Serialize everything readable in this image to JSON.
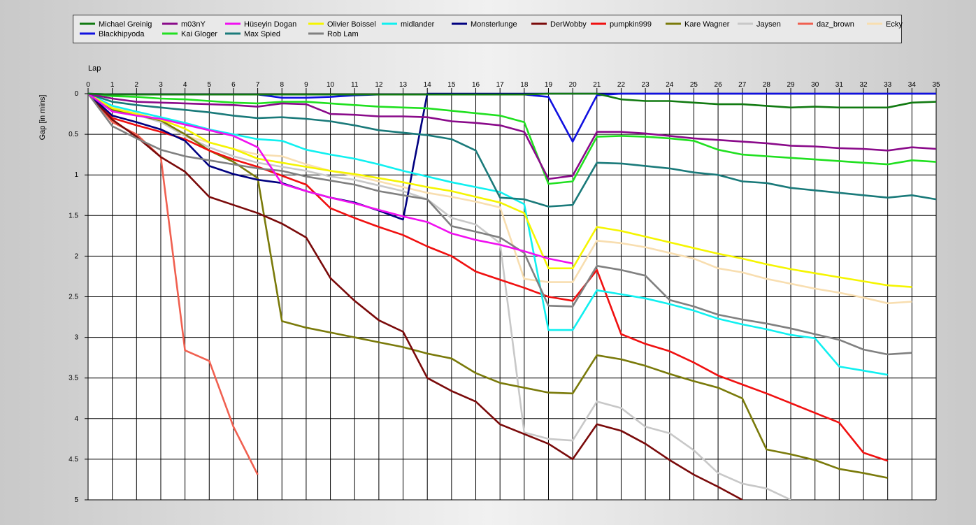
{
  "chart_data": {
    "type": "line",
    "xlabel": "Lap",
    "ylabel": "Gap [in mins]",
    "xlim": [
      0,
      35
    ],
    "ylim": [
      0,
      5
    ],
    "y_inverted": true,
    "grid": true,
    "legend_position": "top",
    "x_ticks": [
      "0",
      "1",
      "2",
      "3",
      "4",
      "5",
      "6",
      "7",
      "8",
      "9",
      "10",
      "11",
      "12",
      "13",
      "14",
      "15",
      "16",
      "17",
      "18",
      "19",
      "20",
      "21",
      "22",
      "23",
      "24",
      "25",
      "26",
      "27",
      "28",
      "29",
      "30",
      "31",
      "32",
      "33",
      "34",
      "35"
    ],
    "y_ticks": [
      "0",
      "0.5",
      "1",
      "1.5",
      "2",
      "2.5",
      "3",
      "3.5",
      "4",
      "4.5",
      "5"
    ],
    "series": [
      {
        "name": "Michael Greinig",
        "color": "#117a11",
        "x": [
          0,
          1,
          2,
          3,
          4,
          5,
          6,
          7,
          8,
          9,
          10,
          11,
          12,
          13,
          14,
          15,
          16,
          17,
          18,
          19,
          20,
          21,
          22,
          23,
          24,
          25,
          26,
          27,
          28,
          29,
          30,
          31,
          32,
          33,
          34,
          35
        ],
        "y": [
          0,
          0.01,
          0.01,
          0.01,
          0.01,
          0.01,
          0.01,
          0.01,
          0.01,
          0.01,
          0.01,
          0.01,
          0.01,
          0.01,
          0.01,
          0.01,
          0.01,
          0.01,
          0.01,
          0,
          0,
          0,
          0.07,
          0.09,
          0.09,
          0.11,
          0.13,
          0.13,
          0.15,
          0.17,
          0.16,
          0.17,
          0.17,
          0.17,
          0.11,
          0.1
        ]
      },
      {
        "name": "Blackhipyoda",
        "color": "#1010e0",
        "x": [
          0,
          1,
          2,
          3,
          4,
          5,
          6,
          7,
          8,
          9,
          10,
          11,
          12,
          13,
          14,
          15,
          16,
          17,
          18,
          19,
          20,
          21,
          22,
          23,
          24,
          25,
          26,
          27,
          28,
          29,
          30,
          31,
          32,
          33,
          34,
          35
        ],
        "y": [
          0,
          0.01,
          0.01,
          0.01,
          0.01,
          0.01,
          0.01,
          0.01,
          0.05,
          0.05,
          0.04,
          0.02,
          0.01,
          0.01,
          0.01,
          0.01,
          0.01,
          0.01,
          0.01,
          0.04,
          0.59,
          0.02,
          0,
          0,
          0,
          0,
          0,
          0,
          0,
          0,
          0,
          0,
          0,
          0,
          0,
          0
        ]
      },
      {
        "name": "m03nY",
        "color": "#8a0a8a",
        "x": [
          0,
          1,
          2,
          3,
          4,
          5,
          6,
          7,
          8,
          9,
          10,
          11,
          12,
          13,
          14,
          15,
          16,
          17,
          18,
          19,
          20,
          21,
          22,
          23,
          24,
          25,
          26,
          27,
          28,
          29,
          30,
          31,
          32,
          33,
          34,
          35
        ],
        "y": [
          0,
          0.06,
          0.1,
          0.11,
          0.12,
          0.13,
          0.14,
          0.16,
          0.12,
          0.13,
          0.25,
          0.26,
          0.28,
          0.28,
          0.29,
          0.34,
          0.36,
          0.39,
          0.47,
          1.05,
          1.01,
          0.47,
          0.47,
          0.49,
          0.52,
          0.55,
          0.57,
          0.59,
          0.61,
          0.64,
          0.65,
          0.67,
          0.68,
          0.7,
          0.66,
          0.68
        ]
      },
      {
        "name": "Kai Gloger",
        "color": "#20e020",
        "x": [
          0,
          1,
          2,
          3,
          4,
          5,
          6,
          7,
          8,
          9,
          10,
          11,
          12,
          13,
          14,
          15,
          16,
          17,
          18,
          19,
          20,
          21,
          22,
          23,
          24,
          25,
          26,
          27,
          28,
          29,
          30,
          31,
          32,
          33,
          34,
          35
        ],
        "y": [
          0,
          0.03,
          0.04,
          0.06,
          0.07,
          0.09,
          0.11,
          0.12,
          0.1,
          0.1,
          0.12,
          0.14,
          0.16,
          0.17,
          0.18,
          0.21,
          0.24,
          0.27,
          0.35,
          1.11,
          1.08,
          0.53,
          0.52,
          0.53,
          0.55,
          0.58,
          0.69,
          0.75,
          0.77,
          0.79,
          0.81,
          0.83,
          0.85,
          0.87,
          0.82,
          0.84
        ]
      },
      {
        "name": "Hüseyin  Dogan",
        "color": "#f010f0",
        "x": [
          0,
          1,
          2,
          3,
          4,
          5,
          6,
          7,
          8,
          9,
          10,
          11,
          12,
          13,
          14,
          15,
          16,
          17,
          18,
          19,
          20
        ],
        "y": [
          0,
          0.22,
          0.27,
          0.31,
          0.38,
          0.45,
          0.52,
          0.66,
          1.11,
          1.2,
          1.28,
          1.35,
          1.43,
          1.51,
          1.58,
          1.72,
          1.8,
          1.86,
          1.94,
          2.03,
          2.09
        ]
      },
      {
        "name": "Max Spied",
        "color": "#1a7a7a",
        "x": [
          0,
          1,
          2,
          3,
          4,
          5,
          6,
          7,
          8,
          9,
          10,
          11,
          12,
          13,
          14,
          15,
          16,
          17,
          18,
          19,
          20,
          21,
          22,
          23,
          24,
          25,
          26,
          27,
          28,
          29,
          30,
          31,
          32,
          33,
          34,
          35
        ],
        "y": [
          0,
          0.1,
          0.14,
          0.17,
          0.2,
          0.23,
          0.27,
          0.3,
          0.29,
          0.31,
          0.34,
          0.39,
          0.45,
          0.48,
          0.51,
          0.56,
          0.7,
          1.28,
          1.3,
          1.39,
          1.37,
          0.85,
          0.86,
          0.89,
          0.92,
          0.97,
          1,
          1.08,
          1.1,
          1.16,
          1.19,
          1.22,
          1.25,
          1.28,
          1.25,
          1.3
        ]
      },
      {
        "name": "Olivier Boissel",
        "color": "#f5f500",
        "x": [
          0,
          1,
          2,
          3,
          4,
          5,
          6,
          7,
          8,
          9,
          10,
          11,
          12,
          13,
          14,
          15,
          16,
          17,
          18,
          19,
          20,
          21,
          22,
          23,
          24,
          25,
          26,
          27,
          28,
          29,
          30,
          31,
          32,
          33,
          34
        ],
        "y": [
          0,
          0.18,
          0.25,
          0.32,
          0.43,
          0.6,
          0.68,
          0.8,
          0.85,
          0.9,
          0.95,
          0.99,
          1.04,
          1.09,
          1.15,
          1.2,
          1.27,
          1.34,
          1.47,
          2.15,
          2.15,
          1.64,
          1.69,
          1.76,
          1.83,
          1.9,
          1.97,
          2.03,
          2.1,
          2.16,
          2.21,
          2.26,
          2.31,
          2.36,
          2.38
        ]
      },
      {
        "name": "Rob Lam",
        "color": "#808080",
        "x": [
          0,
          1,
          2,
          3,
          4,
          5,
          6,
          7,
          8,
          9,
          10,
          11,
          12,
          13,
          14,
          15,
          16,
          17,
          18,
          19,
          20,
          21,
          22,
          23,
          24,
          25,
          26,
          27,
          28,
          29,
          30,
          31,
          32,
          33,
          34
        ],
        "y": [
          0,
          0.4,
          0.55,
          0.69,
          0.77,
          0.82,
          0.87,
          0.92,
          0.95,
          1.02,
          1.07,
          1.12,
          1.2,
          1.25,
          1.3,
          1.63,
          1.7,
          1.77,
          1.96,
          2.61,
          2.62,
          2.12,
          2.17,
          2.24,
          2.54,
          2.62,
          2.72,
          2.78,
          2.83,
          2.89,
          2.96,
          3.03,
          3.15,
          3.21,
          3.19
        ]
      },
      {
        "name": "midlander",
        "color": "#10f0f0",
        "x": [
          0,
          1,
          2,
          3,
          4,
          5,
          6,
          7,
          8,
          9,
          10,
          11,
          12,
          13,
          14,
          15,
          16,
          17,
          18,
          19,
          20,
          21,
          22,
          23,
          24,
          25,
          26,
          27,
          28,
          29,
          30,
          31,
          32,
          33
        ],
        "y": [
          0,
          0.15,
          0.22,
          0.29,
          0.36,
          0.44,
          0.5,
          0.56,
          0.58,
          0.69,
          0.75,
          0.8,
          0.87,
          0.95,
          1.02,
          1.09,
          1.15,
          1.21,
          1.36,
          2.91,
          2.91,
          2.42,
          2.47,
          2.52,
          2.59,
          2.67,
          2.77,
          2.84,
          2.9,
          2.97,
          3.01,
          3.36,
          3.41,
          3.46
        ]
      },
      {
        "name": "Monsterlunge",
        "color": "#000080",
        "x": [
          0,
          1,
          2,
          3,
          4,
          5,
          6,
          7,
          8,
          9,
          10,
          11,
          12,
          13,
          14,
          15,
          16,
          17,
          18,
          19,
          20,
          21,
          22,
          23,
          24,
          25,
          26,
          27,
          28,
          29,
          30,
          31,
          32,
          33,
          34,
          35
        ],
        "y": [
          0,
          0.27,
          0.35,
          0.44,
          0.58,
          0.89,
          0.99,
          1.06,
          1.1,
          1.2,
          1.28,
          1.34,
          1.44,
          1.55,
          0,
          0,
          0,
          0,
          0,
          0,
          0,
          0,
          0,
          0,
          0,
          0,
          0,
          0,
          0,
          0,
          0,
          0,
          0,
          0,
          0,
          0
        ]
      },
      {
        "name": "DerWobby",
        "color": "#7a0a0a",
        "x": [
          0,
          1,
          2,
          3,
          4,
          5,
          6,
          7,
          8,
          9,
          10,
          11,
          12,
          13,
          14,
          15,
          16,
          17,
          18,
          19,
          20,
          21,
          22,
          23,
          24,
          25,
          26,
          27
        ],
        "y": [
          0,
          0.32,
          0.53,
          0.78,
          0.96,
          1.27,
          1.37,
          1.47,
          1.6,
          1.77,
          2.27,
          2.55,
          2.79,
          2.93,
          3.5,
          3.66,
          3.79,
          4.07,
          4.19,
          4.31,
          4.5,
          4.07,
          4.15,
          4.31,
          4.51,
          4.69,
          4.84,
          5
        ]
      },
      {
        "name": "pumpkin999",
        "color": "#f01010",
        "x": [
          0,
          1,
          2,
          3,
          4,
          5,
          6,
          7,
          8,
          9,
          10,
          11,
          12,
          13,
          14,
          15,
          16,
          17,
          18,
          19,
          20,
          21,
          22,
          23,
          24,
          25,
          26,
          27,
          28,
          29,
          30,
          31,
          32,
          33
        ],
        "y": [
          0,
          0.3,
          0.39,
          0.47,
          0.56,
          0.7,
          0.81,
          0.9,
          1.01,
          1.12,
          1.41,
          1.53,
          1.64,
          1.74,
          1.88,
          2,
          2.19,
          2.29,
          2.39,
          2.5,
          2.55,
          2.17,
          2.96,
          3.08,
          3.17,
          3.31,
          3.47,
          3.58,
          3.69,
          3.81,
          3.93,
          4.05,
          4.42,
          4.52
        ]
      },
      {
        "name": "Kare Wagner",
        "color": "#7a7a0a",
        "x": [
          0,
          1,
          2,
          3,
          4,
          5,
          6,
          7,
          8,
          9,
          10,
          11,
          12,
          13,
          14,
          15,
          16,
          17,
          18,
          19,
          20,
          21,
          22,
          23,
          24,
          25,
          26,
          27,
          28,
          29,
          30,
          31,
          32,
          33
        ],
        "y": [
          0,
          0.2,
          0.26,
          0.33,
          0.5,
          0.7,
          0.84,
          1.04,
          2.8,
          2.88,
          2.94,
          3,
          3.06,
          3.12,
          3.2,
          3.26,
          3.44,
          3.56,
          3.62,
          3.68,
          3.69,
          3.22,
          3.27,
          3.35,
          3.45,
          3.54,
          3.62,
          3.75,
          4.38,
          4.44,
          4.51,
          4.62,
          4.67,
          4.73
        ]
      },
      {
        "name": "Jaysen",
        "color": "#c8c8c8",
        "x": [
          0,
          1,
          2,
          3,
          4,
          5,
          6,
          7,
          8,
          9,
          10,
          11,
          12,
          13,
          14,
          15,
          16,
          17,
          18,
          19,
          20,
          21,
          22,
          23,
          24,
          25,
          26,
          27,
          28,
          29
        ],
        "y": [
          0,
          0.18,
          0.26,
          0.35,
          0.52,
          0.66,
          0.77,
          0.85,
          0.9,
          0.95,
          1.02,
          1.06,
          1.13,
          1.2,
          1.3,
          1.53,
          1.61,
          1.84,
          4.17,
          4.25,
          4.27,
          3.79,
          3.87,
          4.1,
          4.18,
          4.39,
          4.67,
          4.8,
          4.86,
          5
        ]
      },
      {
        "name": "daz_brown",
        "color": "#f06050",
        "x": [
          0,
          1,
          2,
          3,
          4,
          5,
          6,
          7
        ],
        "y": [
          0,
          0.35,
          0.5,
          0.78,
          3.16,
          3.29,
          4.1,
          4.69
        ]
      },
      {
        "name": "Ecky",
        "color": "#f8deb0",
        "x": [
          0,
          1,
          2,
          3,
          4,
          5,
          6,
          7,
          8,
          9,
          10,
          11,
          12,
          13,
          14,
          15,
          16,
          17,
          18,
          19,
          20,
          21,
          22,
          23,
          24,
          25,
          26,
          27,
          28,
          29,
          30,
          31,
          32,
          33,
          34
        ],
        "y": [
          0,
          0.17,
          0.24,
          0.33,
          0.52,
          0.6,
          0.68,
          0.75,
          0.77,
          0.87,
          0.95,
          1.01,
          1.08,
          1.15,
          1.22,
          1.27,
          1.33,
          1.4,
          2.28,
          2.32,
          2.32,
          1.81,
          1.84,
          1.89,
          1.96,
          2.03,
          2.15,
          2.2,
          2.28,
          2.34,
          2.4,
          2.45,
          2.51,
          2.58,
          2.56
        ]
      }
    ]
  }
}
